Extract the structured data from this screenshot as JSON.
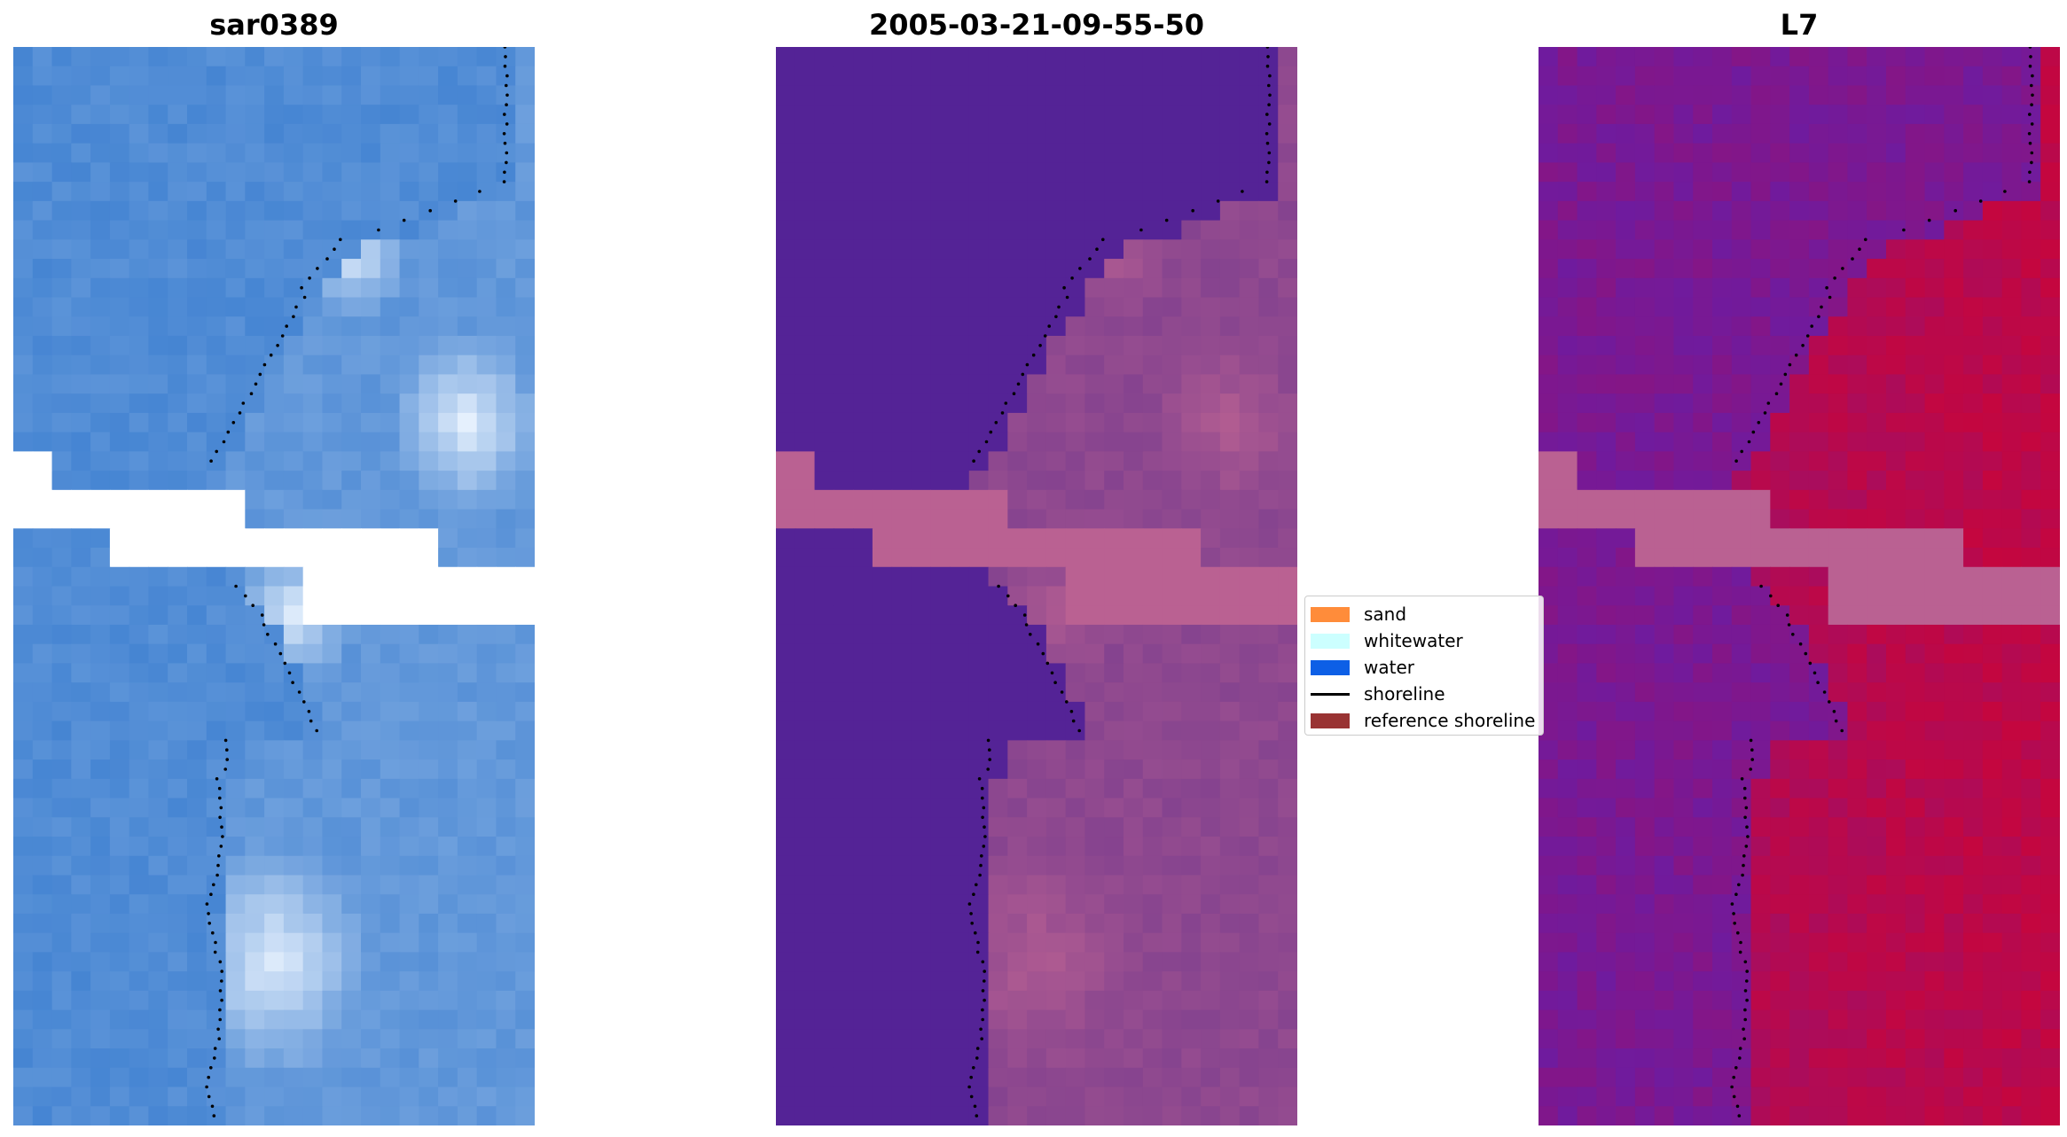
{
  "panels": [
    {
      "title": "sar0389",
      "style": "rgb"
    },
    {
      "title": "2005-03-21-09-55-50",
      "style": "classified"
    },
    {
      "title": "L7",
      "style": "index"
    }
  ],
  "legend": {
    "items": [
      {
        "label": "sand",
        "color": "#ff8c3a",
        "kind": "patch"
      },
      {
        "label": "whitewater",
        "color": "#ccffff",
        "kind": "patch"
      },
      {
        "label": "water",
        "color": "#0d5fe6",
        "kind": "patch"
      },
      {
        "label": "shoreline",
        "color": "#000000",
        "kind": "line"
      },
      {
        "label": "reference shoreline",
        "color": "#993333",
        "kind": "patch"
      }
    ]
  },
  "colors": {
    "rgb_water": "#3d7fd0",
    "rgb_bright": "#eef6ff",
    "class_water": "#542396",
    "class_land": "#7c3e8e",
    "class_nodata": "#ba6192",
    "index_low": "#6f1b9e",
    "index_high": "#c4063f",
    "shoreline": "#000000"
  }
}
